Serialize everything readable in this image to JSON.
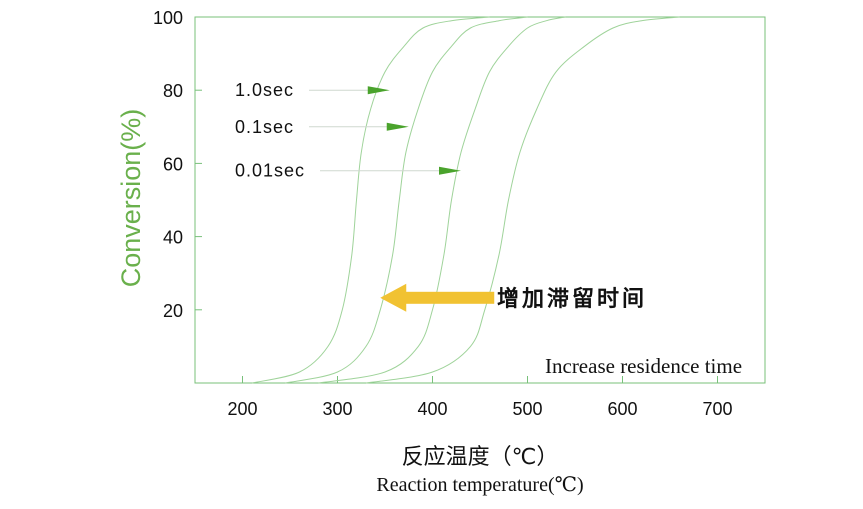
{
  "chart_data": {
    "type": "line",
    "title": "",
    "xlabel": "反应温度（℃）",
    "xlabel_en": "Reaction temperature(℃)",
    "ylabel": "Conversion(%)",
    "xlim": [
      150,
      750
    ],
    "ylim": [
      0,
      100
    ],
    "x_ticks": [
      200,
      300,
      400,
      500,
      600,
      700
    ],
    "y_ticks": [
      20,
      40,
      60,
      80,
      100
    ],
    "grid": false,
    "colors": {
      "axis": "#78c07a",
      "curve": "#9fd39a",
      "ylabel": "#6ab04c",
      "pointer": "#4aa32c",
      "trend_arrow": "#f1c232",
      "text": "#111111"
    },
    "series": [
      {
        "name": "1.0sec",
        "x": [
          210,
          260,
          290,
          305,
          315,
          320,
          325,
          335,
          350,
          370,
          390,
          420,
          460
        ],
        "y": [
          0,
          3,
          10,
          20,
          35,
          50,
          63,
          75,
          85,
          92,
          97,
          99,
          100
        ]
      },
      {
        "name": "0.1sec",
        "x": [
          245,
          300,
          330,
          345,
          358,
          365,
          372,
          385,
          400,
          420,
          440,
          470,
          500
        ],
        "y": [
          0,
          3,
          10,
          20,
          35,
          50,
          63,
          75,
          85,
          92,
          97,
          99,
          100
        ]
      },
      {
        "name": "0.01sec",
        "x": [
          280,
          350,
          385,
          400,
          412,
          420,
          430,
          445,
          460,
          480,
          500,
          520,
          540
        ],
        "y": [
          0,
          3,
          10,
          20,
          35,
          50,
          63,
          75,
          85,
          92,
          97,
          99,
          100
        ]
      },
      {
        "name": "",
        "x": [
          330,
          400,
          440,
          455,
          470,
          480,
          492,
          510,
          530,
          560,
          590,
          620,
          660
        ],
        "y": [
          0,
          3,
          10,
          20,
          35,
          50,
          63,
          75,
          85,
          92,
          97,
          99,
          100
        ]
      }
    ],
    "curve_labels": [
      {
        "text": "1.0sec",
        "y": 80,
        "arrow_tip_x": 355
      },
      {
        "text": "0.1sec",
        "y": 70,
        "arrow_tip_x": 375
      },
      {
        "text": "0.01sec",
        "y": 58,
        "arrow_tip_x": 430
      }
    ],
    "trend": {
      "text_zh": "增加滞留时间",
      "text_en": "Increase residence time",
      "arrow_y": 20,
      "arrow_from_x": 465,
      "arrow_to_x": 345
    }
  }
}
